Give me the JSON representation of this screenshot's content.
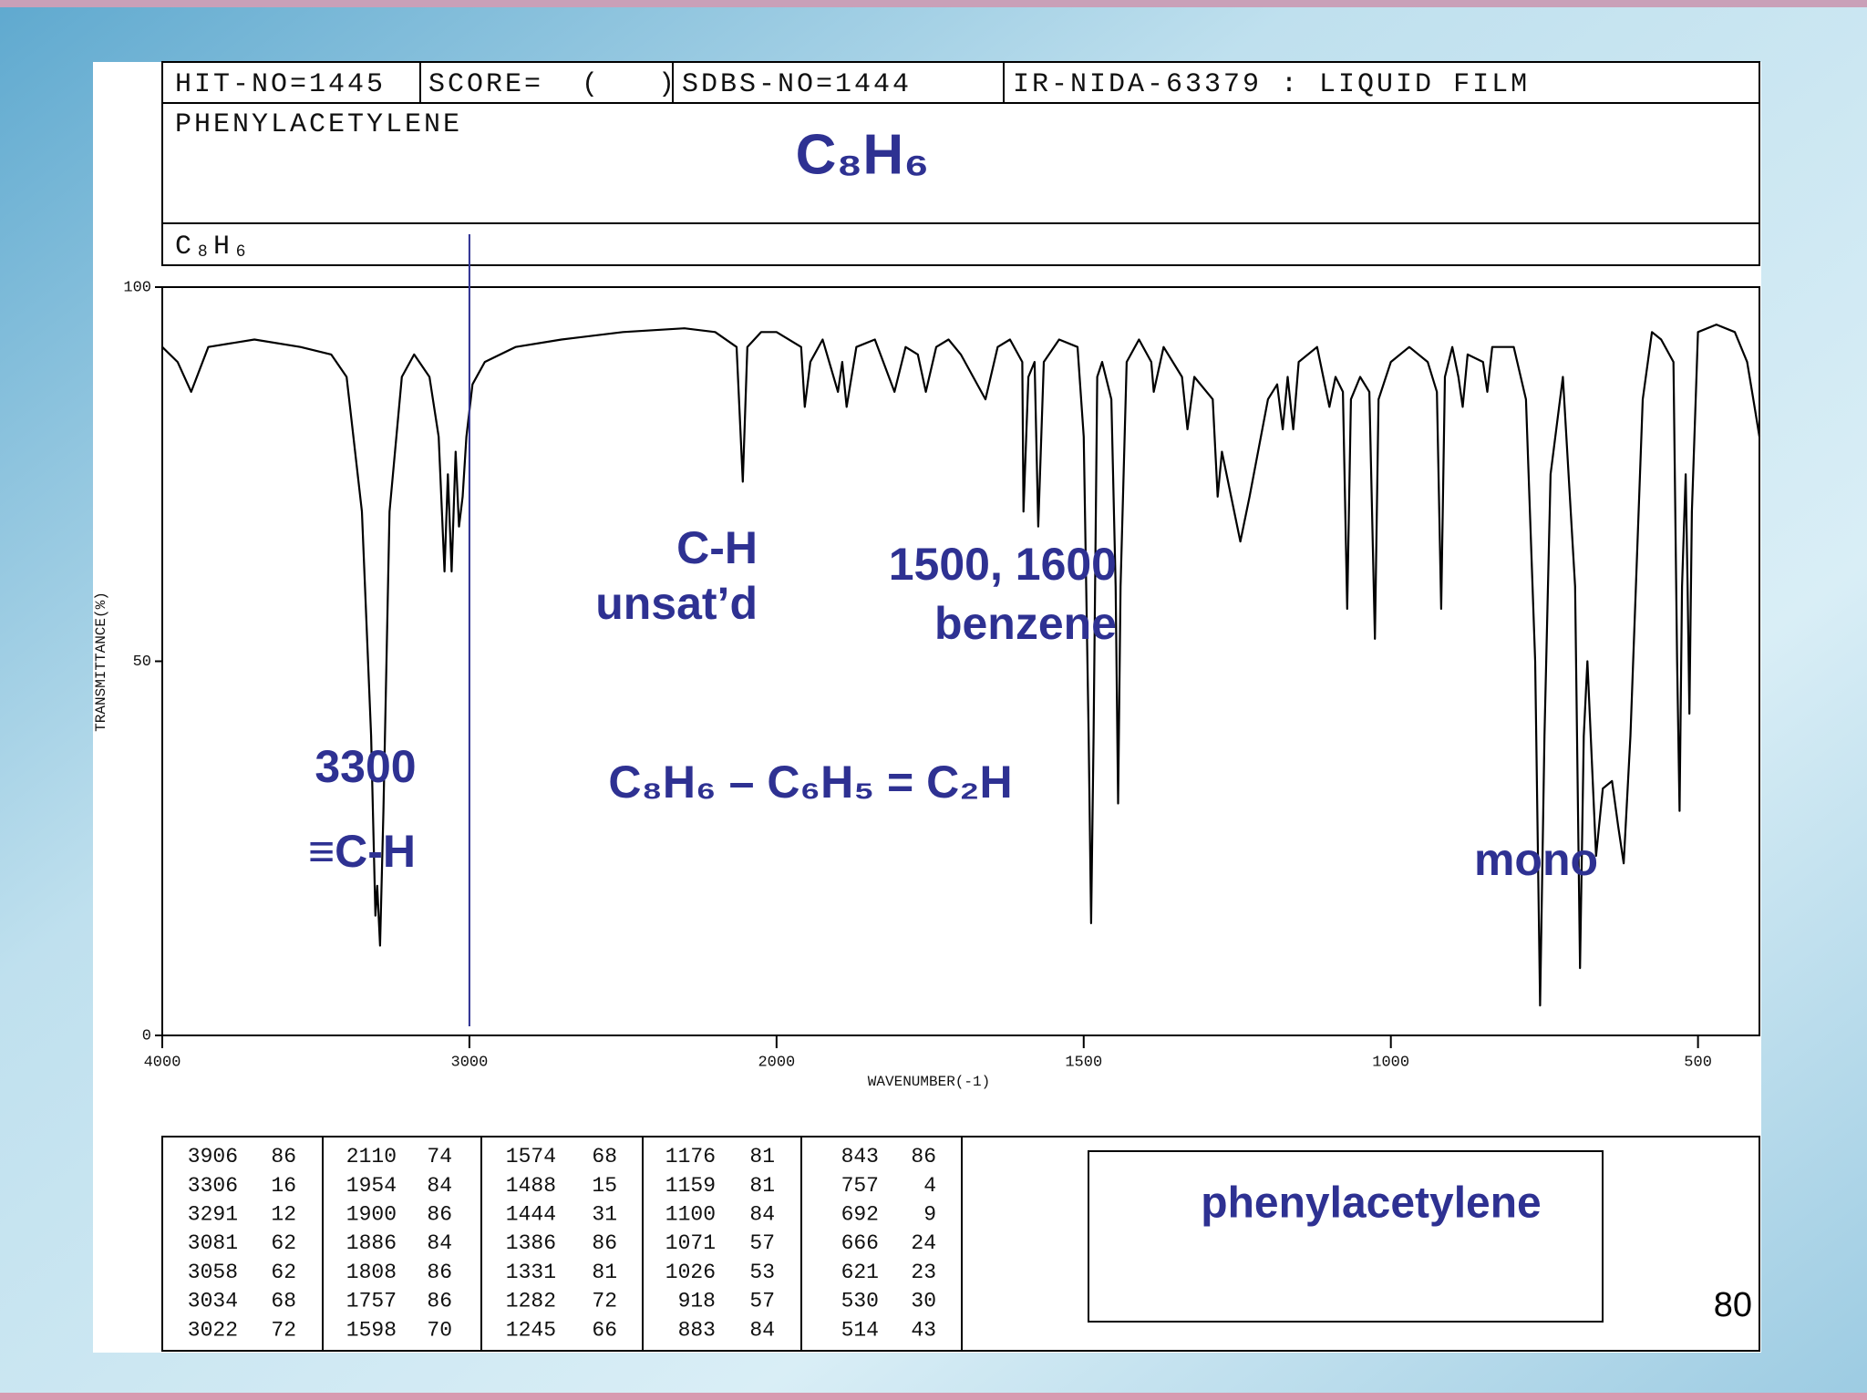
{
  "header": {
    "hit_no": "HIT-NO=1445",
    "score": "SCORE=  (   )",
    "sdbs_no": "SDBS-NO=1444",
    "method": "IR-NIDA-63379 : LIQUID FILM",
    "compound": "PHENYLACETYLENE",
    "formula_small": "C₈H₆",
    "formula": "C₈H₆"
  },
  "chart_data": {
    "type": "line",
    "xlabel": "WAVENUMBER(-1)",
    "ylabel": "TRANSMITTANCE(%)",
    "xlim": [
      4000,
      400
    ],
    "xbreak": 2000,
    "xticks": [
      4000,
      3000,
      2000,
      1500,
      1000,
      500
    ],
    "ylim": [
      0,
      100
    ],
    "yticks": [
      0,
      50,
      100
    ],
    "color": "#000000",
    "vline": 3000,
    "vline_color": "#2e3192",
    "x": [
      4000,
      3950,
      3906,
      3850,
      3700,
      3550,
      3450,
      3400,
      3350,
      3320,
      3306,
      3300,
      3291,
      3280,
      3260,
      3220,
      3180,
      3130,
      3100,
      3081,
      3070,
      3058,
      3045,
      3034,
      3022,
      3010,
      2990,
      2950,
      2850,
      2700,
      2500,
      2300,
      2200,
      2130,
      2110,
      2095,
      2050,
      2000,
      1960,
      1954,
      1945,
      1925,
      1900,
      1893,
      1886,
      1870,
      1840,
      1808,
      1790,
      1770,
      1757,
      1740,
      1720,
      1700,
      1660,
      1640,
      1620,
      1600,
      1598,
      1590,
      1580,
      1574,
      1565,
      1540,
      1510,
      1500,
      1492,
      1488,
      1484,
      1478,
      1470,
      1455,
      1448,
      1444,
      1440,
      1430,
      1410,
      1390,
      1386,
      1370,
      1340,
      1331,
      1320,
      1290,
      1282,
      1275,
      1260,
      1245,
      1230,
      1200,
      1185,
      1176,
      1168,
      1159,
      1150,
      1120,
      1100,
      1090,
      1078,
      1071,
      1065,
      1050,
      1035,
      1026,
      1020,
      1000,
      970,
      940,
      925,
      918,
      912,
      900,
      890,
      883,
      875,
      850,
      843,
      835,
      800,
      780,
      765,
      757,
      750,
      740,
      720,
      700,
      692,
      686,
      680,
      666,
      655,
      640,
      630,
      621,
      610,
      590,
      575,
      560,
      540,
      534,
      530,
      526,
      520,
      517,
      514,
      510,
      500,
      470,
      440,
      420,
      410,
      400
    ],
    "values": [
      92,
      90,
      86,
      92,
      93,
      92,
      91,
      88,
      70,
      40,
      16,
      20,
      12,
      30,
      70,
      88,
      91,
      88,
      80,
      62,
      75,
      62,
      78,
      68,
      72,
      80,
      87,
      90,
      92,
      93,
      94,
      94.5,
      94,
      92,
      74,
      92,
      94,
      94,
      92,
      84,
      90,
      93,
      86,
      90,
      84,
      92,
      93,
      86,
      92,
      91,
      86,
      92,
      93,
      91,
      85,
      92,
      93,
      90,
      70,
      88,
      90,
      68,
      90,
      93,
      92,
      80,
      40,
      15,
      40,
      88,
      90,
      85,
      60,
      31,
      60,
      90,
      93,
      90,
      86,
      92,
      88,
      81,
      88,
      85,
      72,
      78,
      72,
      66,
      72,
      85,
      87,
      81,
      88,
      81,
      90,
      92,
      84,
      88,
      86,
      57,
      85,
      88,
      86,
      53,
      85,
      90,
      92,
      90,
      86,
      57,
      88,
      92,
      88,
      84,
      91,
      90,
      86,
      92,
      92,
      85,
      50,
      4,
      40,
      75,
      88,
      60,
      9,
      40,
      50,
      24,
      33,
      34,
      28,
      23,
      40,
      85,
      94,
      93,
      90,
      50,
      30,
      60,
      75,
      60,
      43,
      70,
      94,
      95,
      94,
      90,
      85,
      80
    ],
    "annotations": [
      "3300",
      "≡C-H",
      "C-H",
      "unsat’d",
      "1500, 1600",
      "benzene",
      "C₈H₆ – C₆H₅ = C₂H",
      "mono"
    ]
  },
  "peak_table": {
    "columns": [
      [
        [
          3906,
          86
        ],
        [
          3306,
          16
        ],
        [
          3291,
          12
        ],
        [
          3081,
          62
        ],
        [
          3058,
          62
        ],
        [
          3034,
          68
        ],
        [
          3022,
          72
        ]
      ],
      [
        [
          2110,
          74
        ],
        [
          1954,
          84
        ],
        [
          1900,
          86
        ],
        [
          1886,
          84
        ],
        [
          1808,
          86
        ],
        [
          1757,
          86
        ],
        [
          1598,
          70
        ]
      ],
      [
        [
          1574,
          68
        ],
        [
          1488,
          15
        ],
        [
          1444,
          31
        ],
        [
          1386,
          86
        ],
        [
          1331,
          81
        ],
        [
          1282,
          72
        ],
        [
          1245,
          66
        ]
      ],
      [
        [
          1176,
          81
        ],
        [
          1159,
          81
        ],
        [
          1100,
          84
        ],
        [
          1071,
          57
        ],
        [
          1026,
          53
        ],
        [
          918,
          57
        ],
        [
          883,
          84
        ]
      ],
      [
        [
          843,
          86
        ],
        [
          757,
          4
        ],
        [
          692,
          9
        ],
        [
          666,
          24
        ],
        [
          621,
          23
        ],
        [
          530,
          30
        ],
        [
          514,
          43
        ]
      ]
    ]
  },
  "label": "phenylacetylene",
  "page_number": "80"
}
